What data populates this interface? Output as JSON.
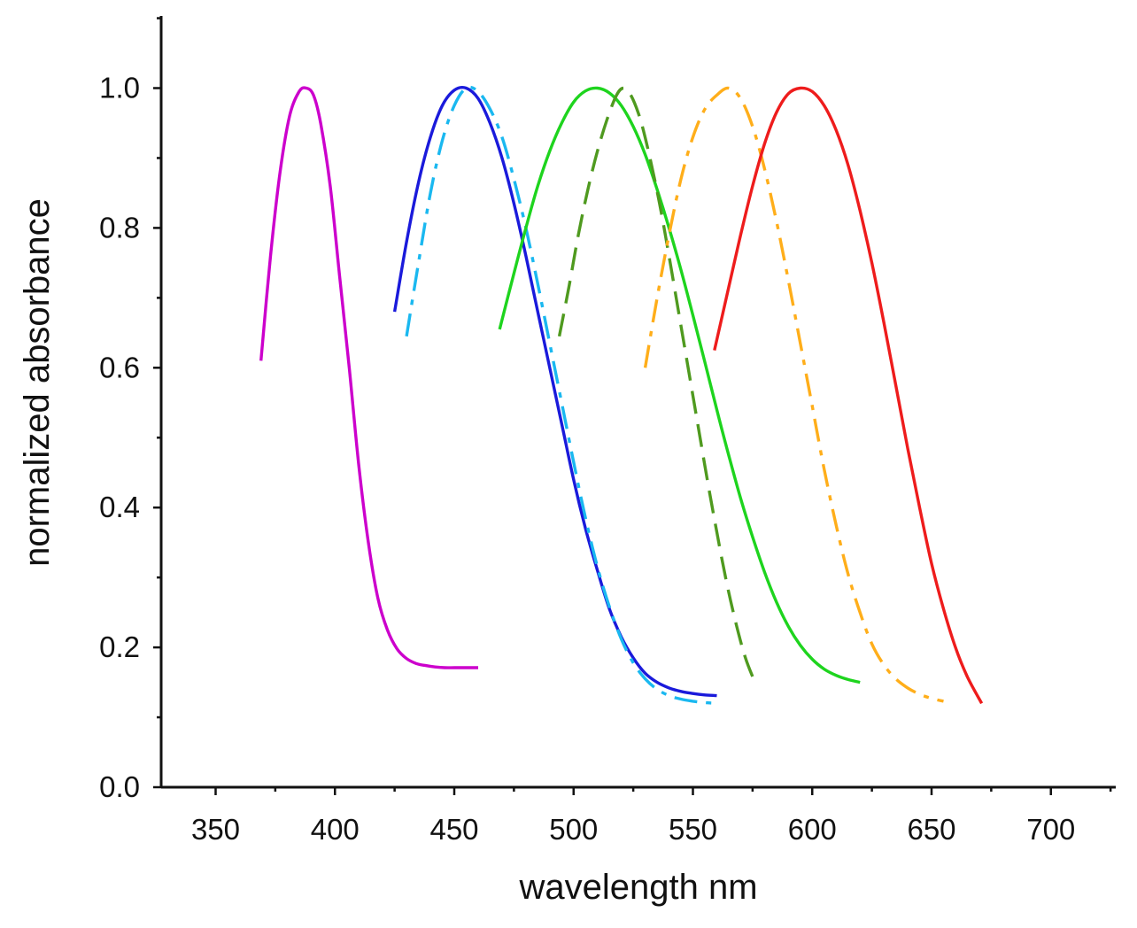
{
  "chart_data": {
    "type": "line",
    "title": "",
    "xlabel": "wavelength nm",
    "ylabel": "normalized absorbance",
    "xlim": [
      325,
      725
    ],
    "ylim": [
      0.0,
      1.1
    ],
    "xticks": [
      "350",
      "400",
      "450",
      "500",
      "550",
      "600",
      "650",
      "700"
    ],
    "yticks": [
      "0.0",
      "0.2",
      "0.4",
      "0.6",
      "0.8",
      "1.0"
    ],
    "grid": false,
    "legend": "none",
    "series": [
      {
        "name": "violet",
        "color": "#cc00cc",
        "dash": "solid",
        "x": [
          369,
          373,
          377,
          381,
          385,
          388,
          391,
          394,
          398,
          402,
          406,
          410,
          414,
          418,
          422,
          426,
          430,
          434,
          438,
          442,
          446,
          450,
          455,
          460
        ],
        "y": [
          0.61,
          0.76,
          0.88,
          0.96,
          0.995,
          1.0,
          0.99,
          0.95,
          0.86,
          0.73,
          0.6,
          0.46,
          0.35,
          0.27,
          0.225,
          0.198,
          0.184,
          0.177,
          0.174,
          0.172,
          0.171,
          0.171,
          0.171,
          0.171
        ]
      },
      {
        "name": "blue",
        "color": "#1a1adb",
        "dash": "solid",
        "x": [
          425,
          430,
          435,
          440,
          445,
          450,
          455,
          460,
          465,
          470,
          475,
          480,
          485,
          490,
          495,
          500,
          505,
          510,
          515,
          520,
          525,
          530,
          535,
          540,
          545,
          550,
          555,
          560
        ],
        "y": [
          0.68,
          0.78,
          0.865,
          0.93,
          0.975,
          0.997,
          1.0,
          0.985,
          0.95,
          0.9,
          0.835,
          0.76,
          0.68,
          0.6,
          0.52,
          0.44,
          0.37,
          0.31,
          0.255,
          0.215,
          0.185,
          0.163,
          0.15,
          0.142,
          0.137,
          0.134,
          0.132,
          0.131
        ]
      },
      {
        "name": "cyan",
        "color": "#1ab8f0",
        "dash": "dashdot",
        "x": [
          430,
          435,
          440,
          445,
          450,
          455,
          460,
          465,
          470,
          475,
          480,
          485,
          490,
          495,
          500,
          505,
          510,
          515,
          520,
          525,
          530,
          535,
          540,
          545,
          550,
          555,
          560
        ],
        "y": [
          0.645,
          0.75,
          0.85,
          0.925,
          0.975,
          1.0,
          0.995,
          0.97,
          0.93,
          0.87,
          0.8,
          0.72,
          0.635,
          0.55,
          0.465,
          0.385,
          0.315,
          0.258,
          0.212,
          0.178,
          0.155,
          0.14,
          0.131,
          0.126,
          0.123,
          0.121,
          0.12
        ]
      },
      {
        "name": "green",
        "color": "#1ed41e",
        "dash": "solid",
        "x": [
          469,
          475,
          480,
          485,
          490,
          495,
          500,
          505,
          510,
          515,
          520,
          525,
          530,
          535,
          540,
          545,
          550,
          555,
          560,
          565,
          570,
          575,
          580,
          585,
          590,
          595,
          600,
          605,
          610,
          615,
          620
        ],
        "y": [
          0.655,
          0.735,
          0.8,
          0.86,
          0.91,
          0.95,
          0.98,
          0.996,
          1.0,
          0.993,
          0.975,
          0.945,
          0.905,
          0.855,
          0.8,
          0.74,
          0.675,
          0.608,
          0.54,
          0.475,
          0.413,
          0.358,
          0.308,
          0.265,
          0.23,
          0.203,
          0.183,
          0.169,
          0.16,
          0.154,
          0.15
        ]
      },
      {
        "name": "olive",
        "color": "#4f9a1f",
        "dash": "dashed",
        "x": [
          494,
          498,
          502,
          506,
          510,
          514,
          518,
          521,
          524,
          528,
          532,
          536,
          540,
          544,
          548,
          552,
          556,
          560,
          564,
          568,
          572,
          576
        ],
        "y": [
          0.645,
          0.715,
          0.79,
          0.855,
          0.91,
          0.955,
          0.99,
          1.0,
          0.99,
          0.955,
          0.9,
          0.835,
          0.76,
          0.68,
          0.6,
          0.52,
          0.44,
          0.365,
          0.295,
          0.235,
          0.185,
          0.15
        ]
      },
      {
        "name": "orange",
        "color": "#ffae1a",
        "dash": "dashdot",
        "x": [
          530,
          535,
          540,
          545,
          550,
          555,
          560,
          565,
          570,
          575,
          580,
          585,
          590,
          595,
          600,
          605,
          610,
          615,
          620,
          625,
          630,
          635,
          640,
          645,
          650,
          655
        ],
        "y": [
          0.6,
          0.7,
          0.79,
          0.87,
          0.93,
          0.97,
          0.99,
          1.0,
          0.985,
          0.945,
          0.885,
          0.81,
          0.725,
          0.635,
          0.545,
          0.455,
          0.375,
          0.305,
          0.25,
          0.205,
          0.175,
          0.155,
          0.142,
          0.133,
          0.127,
          0.123
        ]
      },
      {
        "name": "red",
        "color": "#ee1c1c",
        "dash": "solid",
        "x": [
          559,
          565,
          570,
          575,
          580,
          585,
          590,
          595,
          600,
          605,
          610,
          615,
          620,
          625,
          630,
          635,
          640,
          645,
          650,
          655,
          660,
          665,
          671
        ],
        "y": [
          0.625,
          0.715,
          0.79,
          0.86,
          0.92,
          0.965,
          0.992,
          1.0,
          0.995,
          0.975,
          0.94,
          0.89,
          0.825,
          0.75,
          0.665,
          0.575,
          0.485,
          0.4,
          0.32,
          0.255,
          0.2,
          0.158,
          0.12
        ]
      }
    ]
  }
}
